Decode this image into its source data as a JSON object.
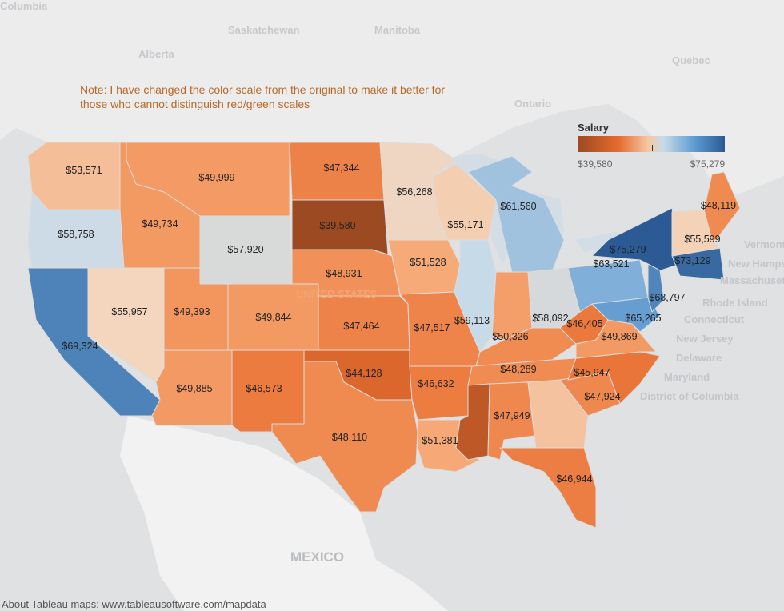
{
  "note": "Note: I have changed the color scale from the original to make it better for those who cannot distinguish red/green scales",
  "legend": {
    "title": "Salary",
    "min": "$39,580",
    "max": "$75,279"
  },
  "footer": "About Tableau maps: www.tableausoftware.com/mapdata",
  "colors": {
    "background": "#dfe1e3",
    "land": "#ffffff",
    "low": "#9c4a22",
    "mid": "#f5c8a2",
    "high": "#2b5a94"
  },
  "geo_labels": [
    "Columbia",
    "Saskatchewan",
    "Manitoba",
    "Alberta",
    "Ontario",
    "Quebec",
    "MEXICO",
    "UNITED STATES"
  ],
  "side_labels": [
    "Vermont",
    "New Hampshire",
    "Massachusetts",
    "Rhode Island",
    "Connecticut",
    "New Jersey",
    "Delaware",
    "Maryland",
    "District of Columbia"
  ],
  "states": [
    {
      "code": "WA",
      "label": "$53,571",
      "value": 53571
    },
    {
      "code": "OR",
      "label": "$58,758",
      "value": 58758
    },
    {
      "code": "CA",
      "label": "$69,324",
      "value": 69324
    },
    {
      "code": "NV",
      "label": "$55,957",
      "value": 55957
    },
    {
      "code": "ID",
      "label": "$49,734",
      "value": 49734
    },
    {
      "code": "MT",
      "label": "$49,999",
      "value": 49999
    },
    {
      "code": "WY",
      "label": "$57,920",
      "value": 57920
    },
    {
      "code": "UT",
      "label": "$49,393",
      "value": 49393
    },
    {
      "code": "AZ",
      "label": "$49,885",
      "value": 49885
    },
    {
      "code": "CO",
      "label": "$49,844",
      "value": 49844
    },
    {
      "code": "NM",
      "label": "$46,573",
      "value": 46573
    },
    {
      "code": "ND",
      "label": "$47,344",
      "value": 47344
    },
    {
      "code": "SD",
      "label": "$39,580",
      "value": 39580
    },
    {
      "code": "NE",
      "label": "$48,931",
      "value": 48931
    },
    {
      "code": "KS",
      "label": "$47,464",
      "value": 47464
    },
    {
      "code": "OK",
      "label": "$44,128",
      "value": 44128
    },
    {
      "code": "TX",
      "label": "$48,110",
      "value": 48110
    },
    {
      "code": "MN",
      "label": "$56,268",
      "value": 56268
    },
    {
      "code": "IA",
      "label": "$51,528",
      "value": 51528
    },
    {
      "code": "MO",
      "label": "$47,517",
      "value": 47517
    },
    {
      "code": "AR",
      "label": "$46,632",
      "value": 46632
    },
    {
      "code": "LA",
      "label": "$51,381",
      "value": 51381
    },
    {
      "code": "WI",
      "label": "$55,171",
      "value": 55171
    },
    {
      "code": "IL",
      "label": "$59,113",
      "value": 59113
    },
    {
      "code": "MI",
      "label": "$61,560",
      "value": 61560
    },
    {
      "code": "IN",
      "label": "$50,326",
      "value": 50326
    },
    {
      "code": "OH",
      "label": "$58,092",
      "value": 58092
    },
    {
      "code": "KY",
      "label": "$48,289",
      "value": 48289
    },
    {
      "code": "TN",
      "label": "$48,289",
      "value": 48289
    },
    {
      "code": "MS",
      "label": "",
      "value": 42000
    },
    {
      "code": "AL",
      "label": "$47,949",
      "value": 47949
    },
    {
      "code": "GA",
      "label": "",
      "value": 54000
    },
    {
      "code": "FL",
      "label": "$46,944",
      "value": 46944
    },
    {
      "code": "SC",
      "label": "$47,924",
      "value": 47924
    },
    {
      "code": "NC",
      "label": "$45,947",
      "value": 45947
    },
    {
      "code": "WV",
      "label": "$46,405",
      "value": 46405
    },
    {
      "code": "VA",
      "label": "$49,869",
      "value": 49869
    },
    {
      "code": "PA",
      "label": "$63,521",
      "value": 63521
    },
    {
      "code": "NY",
      "label": "$75,279",
      "value": 75279
    },
    {
      "code": "MD",
      "label": "$65,265",
      "value": 65265
    },
    {
      "code": "NJ",
      "label": "$68,797",
      "value": 68797
    },
    {
      "code": "CT",
      "label": "$73,129",
      "value": 73129
    },
    {
      "code": "VT",
      "label": "$55,599",
      "value": 55599
    },
    {
      "code": "ME",
      "label": "$48,119",
      "value": 48119
    }
  ]
}
